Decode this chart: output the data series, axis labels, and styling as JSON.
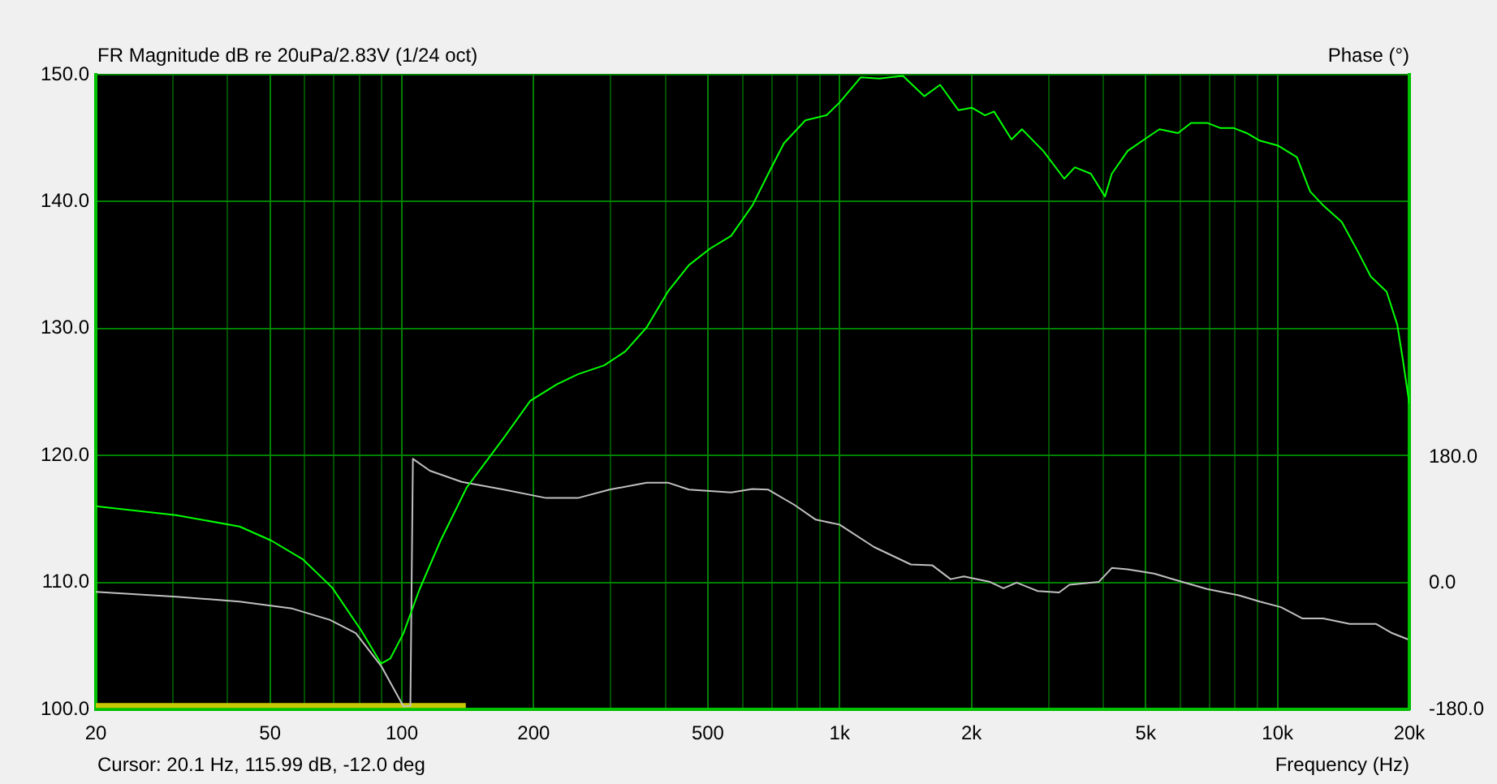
{
  "chart_data": {
    "type": "line",
    "title": "FR Magnitude dB re 20uPa/2.83V (1/24 oct)",
    "xlabel": "Frequency (Hz)",
    "y2label": "Phase (°)",
    "annotations": [
      "Cursor: 20.1 Hz, 115.99 dB, -12.0 deg"
    ],
    "log": "x",
    "grid": true,
    "legend": false,
    "marker": "none",
    "xlim": [
      20,
      20000
    ],
    "xticks": [
      20,
      {
        "value": 30,
        "label": null
      },
      {
        "value": 40,
        "label": null
      },
      50,
      {
        "value": 60,
        "label": null
      },
      {
        "value": 70,
        "label": null
      },
      {
        "value": 80,
        "label": null
      },
      {
        "value": 90,
        "label": null
      },
      100,
      200,
      {
        "value": 300,
        "label": null
      },
      {
        "value": 400,
        "label": null
      },
      500,
      {
        "value": 600,
        "label": null
      },
      {
        "value": 700,
        "label": null
      },
      {
        "value": 800,
        "label": null
      },
      {
        "value": 900,
        "label": null
      },
      {
        "value": 1000,
        "label": "1k"
      },
      {
        "value": 2000,
        "label": "2k"
      },
      {
        "value": 3000,
        "label": null
      },
      {
        "value": 4000,
        "label": null
      },
      {
        "value": 5000,
        "label": "5k"
      },
      {
        "value": 6000,
        "label": null
      },
      {
        "value": 7000,
        "label": null
      },
      {
        "value": 8000,
        "label": null
      },
      {
        "value": 9000,
        "label": null
      },
      {
        "value": 10000,
        "label": "10k"
      },
      {
        "value": 20000,
        "label": "20k"
      }
    ],
    "ylim": [
      100,
      150
    ],
    "yticks": [
      {
        "value": 100,
        "label": "100.0"
      },
      {
        "value": 110,
        "label": "110.0"
      },
      {
        "value": 120,
        "label": "120.0"
      },
      {
        "value": 130,
        "label": "130.0"
      },
      {
        "value": 140,
        "label": "140.0"
      },
      {
        "value": 150,
        "label": "150.0"
      }
    ],
    "y2lim": [
      -180,
      727
    ],
    "y2ticks": [
      {
        "value": -180,
        "label": "-180.0"
      },
      {
        "value": 0,
        "label": "0.0"
      },
      {
        "value": 180,
        "label": "180.0"
      }
    ],
    "series": [
      {
        "color": "#00ff00",
        "x": [
          20,
          30.5,
          42.6,
          50.3,
          59.5,
          69.3,
          80.8,
          89.7,
          94.1,
          100.9,
          109.6,
          122.6,
          140.8,
          171,
          196.5,
          225.8,
          252.4,
          290,
          324,
          362.6,
          405,
          452.6,
          506,
          565,
          632,
          687,
          746,
          835,
          933,
          999,
          1118,
          1231,
          1395,
          1560,
          1696,
          1868,
          2003,
          2148,
          2252,
          2468,
          2608,
          2916,
          3258,
          3444,
          3746,
          4036,
          4184,
          4548,
          5012,
          5374,
          5924,
          6348,
          6902,
          7396,
          7932,
          8502,
          9112,
          10042,
          11072,
          11868,
          12716,
          14020,
          15240,
          16332,
          17754,
          18772,
          19298,
          20000
        ],
        "values": [
          116.0,
          115.3,
          114.4,
          113.3,
          111.8,
          109.6,
          106.2,
          103.6,
          104.0,
          106.0,
          109.4,
          113.3,
          117.5,
          121.4,
          124.3,
          125.6,
          126.4,
          127.1,
          128.2,
          130.1,
          132.9,
          135.0,
          136.3,
          137.3,
          139.7,
          142.2,
          144.6,
          146.4,
          146.8,
          147.8,
          149.8,
          149.7,
          149.9,
          148.3,
          149.2,
          147.2,
          147.4,
          146.8,
          147.1,
          144.9,
          145.7,
          144.0,
          141.8,
          142.7,
          142.2,
          140.4,
          142.2,
          144.0,
          145.0,
          145.7,
          145.4,
          146.2,
          146.2,
          145.8,
          145.8,
          145.4,
          144.8,
          144.4,
          143.5,
          140.8,
          139.7,
          138.4,
          136.1,
          134.1,
          132.9,
          130.3,
          127.7,
          124.1
        ]
      },
      {
        "color": "#c0c0c0",
        "axis": "y2",
        "x": [
          20,
          30.5,
          42.6,
          56.2,
          68.4,
          78.5,
          89.7,
          100.9,
          104.6,
          106.0,
          115.9,
          137,
          171,
          213.6,
          252.4,
          298.2,
          362.6,
          405,
          452.6,
          565,
          632,
          687,
          789,
          882,
          999,
          1198,
          1454,
          1626,
          1792,
          1921,
          2206,
          2366,
          2536,
          2834,
          3170,
          3348,
          3904,
          4184,
          4548,
          5228,
          5842,
          6902,
          8156,
          9112,
          10184,
          11384,
          12716,
          14616,
          16802,
          18258,
          19848
        ],
        "values": [
          -12,
          -19,
          -26,
          -36,
          -52,
          -71,
          -118,
          -176,
          -175,
          178,
          161,
          145,
          134,
          122,
          122,
          134,
          144,
          144,
          134,
          130,
          135,
          134,
          112,
          91,
          84,
          52,
          27,
          26,
          6,
          10,
          2,
          -7,
          1,
          -11,
          -13,
          -2,
          2,
          22,
          20,
          14,
          5,
          -8,
          -17,
          -26,
          -34,
          -50,
          -50,
          -58,
          -58,
          -71,
          -80
        ]
      },
      {
        "color": "#c8c800",
        "x": [
          20,
          140
        ],
        "values": [
          100.3,
          100.3
        ]
      }
    ]
  }
}
